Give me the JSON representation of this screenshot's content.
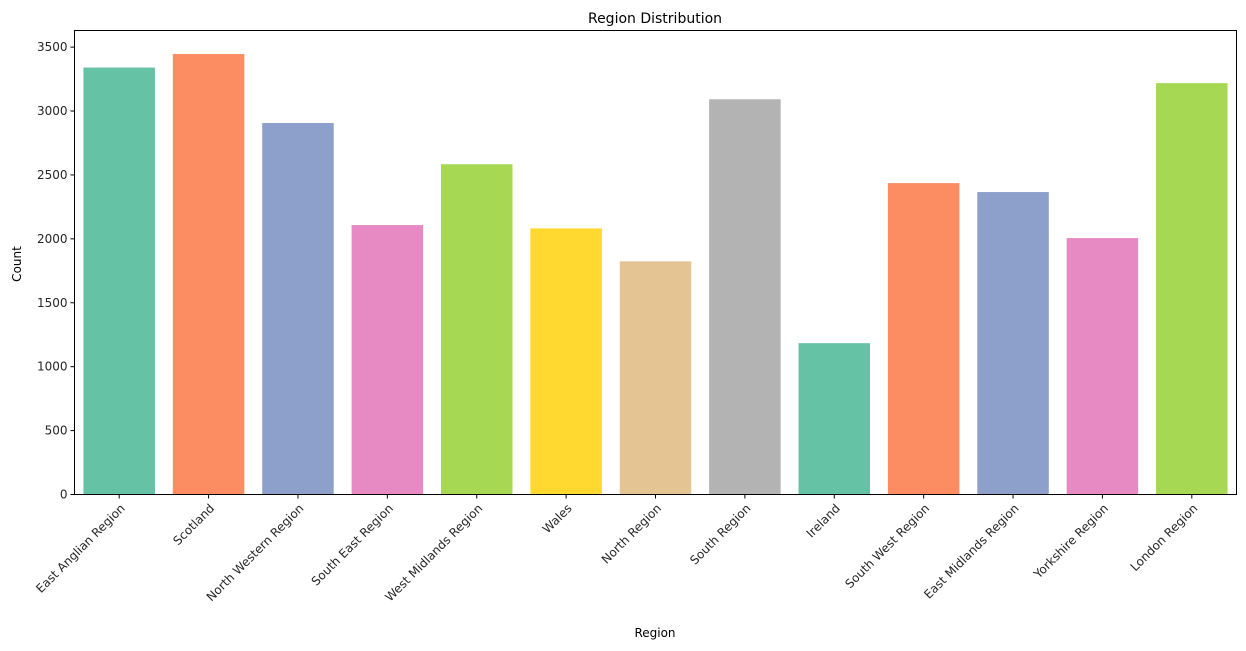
{
  "chart_data": {
    "type": "bar",
    "title": "Region Distribution",
    "xlabel": "Region",
    "ylabel": "Count",
    "ylim": [
      0,
      3630
    ],
    "yticks": [
      "0",
      "500",
      "1000",
      "1500",
      "2000",
      "2500",
      "3000",
      "3500"
    ],
    "grid": false,
    "categories": [
      "East Anglian Region",
      "Scotland",
      "North Western Region",
      "South East Region",
      "West Midlands Region",
      "Wales",
      "North Region",
      "South Region",
      "Ireland",
      "South West Region",
      "East Midlands Region",
      "Yorkshire Region",
      "London Region"
    ],
    "values": [
      3340,
      3446,
      2906,
      2108,
      2584,
      2082,
      1824,
      3092,
      1184,
      2436,
      2366,
      2006,
      3218
    ],
    "colors": [
      "#66c2a5",
      "#fc8d62",
      "#8da0cb",
      "#e78ac3",
      "#a6d854",
      "#ffd92f",
      "#e5c494",
      "#b3b3b3",
      "#66c2a5",
      "#fc8d62",
      "#8da0cb",
      "#e78ac3",
      "#a6d854"
    ]
  }
}
